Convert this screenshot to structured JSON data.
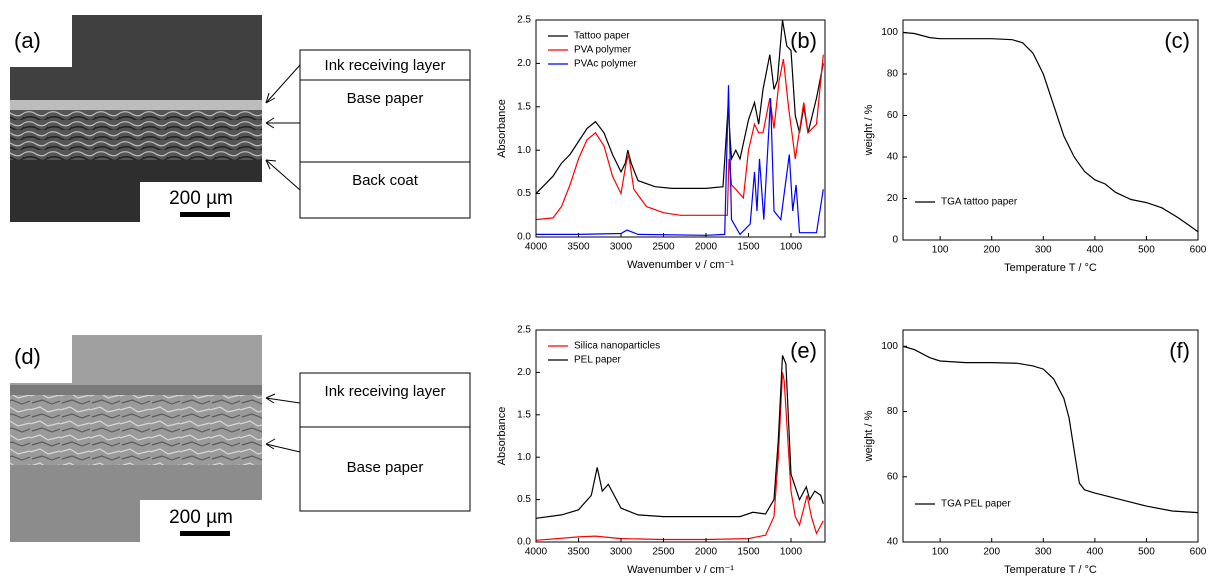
{
  "image_panels": [
    {
      "label": "(a)",
      "scale_bar": "200 µm",
      "layers": [
        "Ink receiving layer",
        "Base paper",
        "Back coat"
      ]
    },
    {
      "label": "(d)",
      "scale_bar": "200 µm",
      "layers": [
        "Ink receiving layer",
        "Base paper"
      ]
    }
  ],
  "chart_data": [
    {
      "type": "line",
      "panel_label": "(b)",
      "x_label": "Wavenumber ν / cm⁻¹",
      "y_label": "Absorbance",
      "xlim": [
        4000,
        600
      ],
      "xticks": [
        4000,
        3500,
        3000,
        2500,
        2000,
        1500,
        1000
      ],
      "ylim": [
        0,
        2.5
      ],
      "yticks": [
        {
          "value": 0,
          "label": "0.0"
        },
        0.5,
        {
          "value": 1,
          "label": "1.0"
        },
        1.5,
        {
          "value": 2,
          "label": "2.0"
        },
        2.5
      ],
      "legend": "upper left",
      "series": [
        {
          "name": "Tattoo paper",
          "color": "#000000",
          "x": [
            4000,
            3900,
            3800,
            3700,
            3600,
            3500,
            3400,
            3300,
            3200,
            3100,
            3000,
            2950,
            2920,
            2880,
            2800,
            2600,
            2400,
            2200,
            2000,
            1800,
            1740,
            1700,
            1650,
            1600,
            1500,
            1430,
            1380,
            1330,
            1250,
            1200,
            1160,
            1100,
            1050,
            1000,
            950,
            900,
            850,
            800,
            700,
            620
          ],
          "values": [
            0.5,
            0.6,
            0.7,
            0.85,
            0.95,
            1.1,
            1.25,
            1.33,
            1.2,
            0.95,
            0.75,
            0.85,
            1.0,
            0.85,
            0.65,
            0.58,
            0.56,
            0.56,
            0.56,
            0.58,
            1.5,
            0.9,
            1.0,
            0.9,
            1.35,
            1.55,
            1.3,
            1.7,
            2.1,
            1.7,
            1.8,
            2.5,
            2.2,
            2.15,
            1.4,
            1.2,
            1.5,
            1.2,
            1.6,
            2.0
          ]
        },
        {
          "name": "PVA polymer",
          "color": "#ff0000",
          "x": [
            4000,
            3800,
            3700,
            3600,
            3500,
            3400,
            3300,
            3200,
            3100,
            3000,
            2940,
            2910,
            2850,
            2700,
            2500,
            2300,
            2000,
            1750,
            1730,
            1700,
            1650,
            1560,
            1500,
            1430,
            1380,
            1330,
            1250,
            1200,
            1140,
            1090,
            1030,
            950,
            920,
            850,
            800,
            700,
            620
          ],
          "values": [
            0.2,
            0.22,
            0.35,
            0.6,
            0.9,
            1.12,
            1.2,
            1.05,
            0.7,
            0.5,
            0.85,
            0.95,
            0.55,
            0.35,
            0.28,
            0.25,
            0.25,
            0.25,
            0.9,
            0.6,
            0.55,
            0.45,
            1.0,
            1.3,
            1.2,
            1.2,
            1.6,
            1.25,
            1.8,
            2.05,
            1.5,
            0.9,
            1.1,
            1.55,
            1.2,
            1.3,
            2.1
          ]
        },
        {
          "name": "PVAc polymer",
          "color": "#0000ff",
          "x": [
            4000,
            3500,
            3000,
            2930,
            2800,
            2000,
            1780,
            1735,
            1700,
            1600,
            1480,
            1430,
            1400,
            1370,
            1320,
            1240,
            1200,
            1120,
            1020,
            980,
            940,
            900,
            700,
            620
          ],
          "values": [
            0.03,
            0.03,
            0.04,
            0.08,
            0.03,
            0.02,
            0.03,
            1.75,
            0.2,
            0.03,
            0.15,
            0.75,
            0.3,
            0.9,
            0.2,
            1.6,
            0.3,
            0.2,
            0.95,
            0.3,
            0.6,
            0.05,
            0.05,
            0.55
          ]
        }
      ]
    },
    {
      "type": "line",
      "panel_label": "(c)",
      "x_label": "Temperature T / °C",
      "y_label": "weight / %",
      "xlim": [
        28,
        600
      ],
      "xticks": [
        100,
        200,
        300,
        400,
        500,
        600
      ],
      "ylim": [
        0,
        106
      ],
      "yticks": [
        0,
        20,
        40,
        60,
        80,
        100
      ],
      "legend": "lower left",
      "series": [
        {
          "name": "TGA tattoo paper",
          "color": "#000000",
          "x": [
            28,
            50,
            80,
            100,
            150,
            200,
            240,
            260,
            280,
            300,
            320,
            340,
            360,
            380,
            400,
            420,
            440,
            470,
            500,
            530,
            560,
            580,
            600
          ],
          "values": [
            100,
            99.5,
            97.5,
            97,
            97,
            97,
            96.5,
            95,
            90,
            80,
            65,
            50,
            40,
            33,
            29,
            27,
            23,
            19.5,
            18,
            15.5,
            11,
            7.5,
            4
          ]
        }
      ]
    },
    {
      "type": "line",
      "panel_label": "(e)",
      "x_label": "Wavenumber ν / cm⁻¹",
      "y_label": "Absorbance",
      "xlim": [
        4000,
        600
      ],
      "xticks": [
        4000,
        3500,
        3000,
        2500,
        2000,
        1500,
        1000
      ],
      "ylim": [
        0,
        2.5
      ],
      "yticks": [
        {
          "value": 0,
          "label": "0.0"
        },
        0.5,
        {
          "value": 1,
          "label": "1.0"
        },
        1.5,
        {
          "value": 2,
          "label": "2.0"
        },
        2.5
      ],
      "legend": "upper left",
      "series": [
        {
          "name": "Silica nanoparticles",
          "color": "#ff0000",
          "x": [
            4000,
            3500,
            3300,
            3000,
            2500,
            2000,
            1500,
            1300,
            1200,
            1150,
            1100,
            1080,
            1000,
            950,
            900,
            810,
            760,
            700,
            620
          ],
          "values": [
            0.02,
            0.06,
            0.07,
            0.04,
            0.03,
            0.03,
            0.04,
            0.08,
            0.3,
            1.0,
            2.0,
            1.9,
            0.6,
            0.3,
            0.2,
            0.55,
            0.3,
            0.1,
            0.25
          ]
        },
        {
          "name": "PEL paper",
          "color": "#000000",
          "x": [
            4000,
            3700,
            3500,
            3350,
            3280,
            3220,
            3150,
            3080,
            3000,
            2800,
            2500,
            2000,
            1600,
            1450,
            1300,
            1200,
            1150,
            1100,
            1060,
            1000,
            900,
            820,
            780,
            720,
            650,
            620
          ],
          "values": [
            0.28,
            0.32,
            0.38,
            0.55,
            0.88,
            0.6,
            0.68,
            0.55,
            0.4,
            0.32,
            0.3,
            0.3,
            0.3,
            0.35,
            0.33,
            0.5,
            1.2,
            2.2,
            2.1,
            0.8,
            0.5,
            0.65,
            0.5,
            0.6,
            0.55,
            0.45
          ]
        }
      ]
    },
    {
      "type": "line",
      "panel_label": "(f)",
      "x_label": "Temperature T / °C",
      "y_label": "weight / %",
      "xlim": [
        28,
        600
      ],
      "xticks": [
        100,
        200,
        300,
        400,
        500,
        600
      ],
      "ylim": [
        40,
        105
      ],
      "yticks": [
        40,
        60,
        80,
        100
      ],
      "legend": "lower left",
      "series": [
        {
          "name": "TGA PEL paper",
          "color": "#000000",
          "x": [
            28,
            50,
            80,
            100,
            150,
            200,
            250,
            280,
            300,
            320,
            340,
            350,
            360,
            370,
            380,
            400,
            450,
            500,
            550,
            600
          ],
          "values": [
            100,
            99,
            96.5,
            95.5,
            95,
            95,
            94.8,
            94,
            93,
            90,
            84,
            78,
            68,
            58,
            56,
            55,
            53,
            51,
            49.5,
            49
          ]
        }
      ]
    }
  ]
}
